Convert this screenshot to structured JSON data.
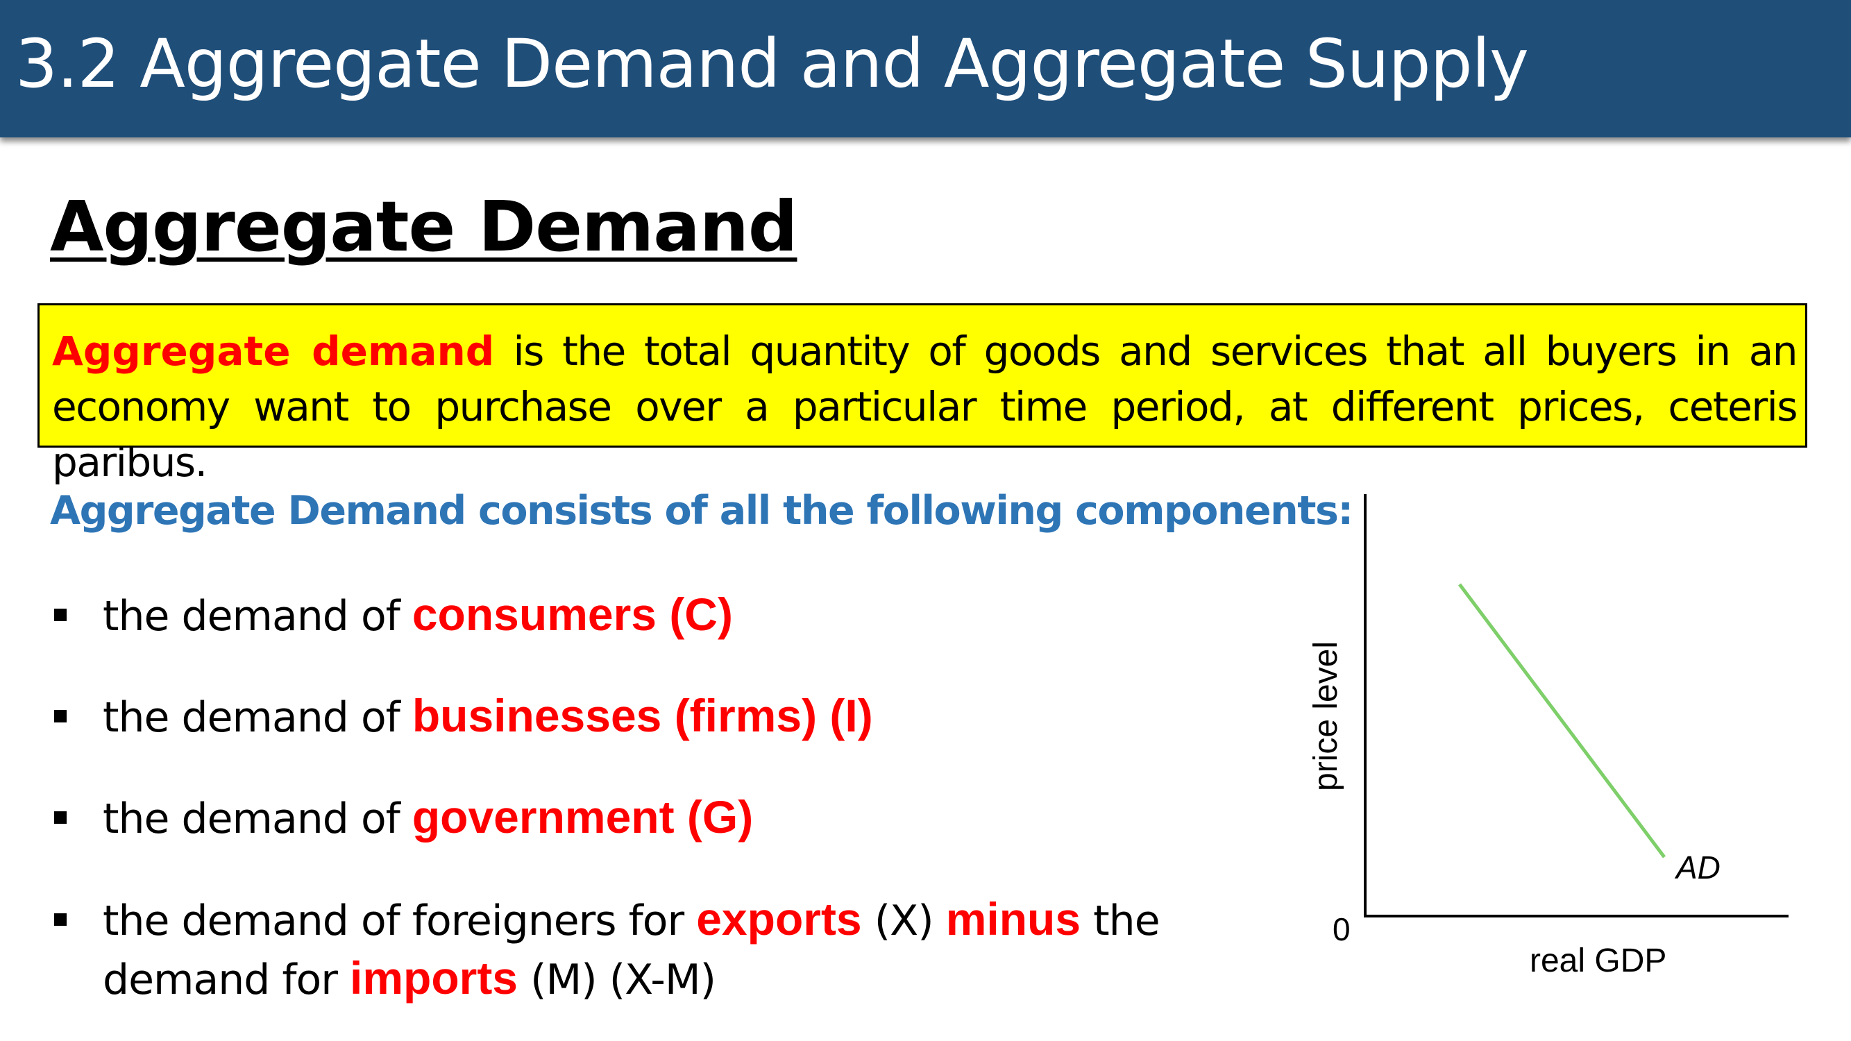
{
  "header": {
    "title": "3.2 Aggregate Demand and Aggregate Supply"
  },
  "section": {
    "heading": "Aggregate Demand"
  },
  "definition": {
    "term": "Aggregate demand",
    "text": " is the total quantity of goods and services that all buyers in an economy want to purchase over a particular time period, at different prices, ceteris paribus."
  },
  "components": {
    "heading": "Aggregate Demand consists of all the following components:",
    "bullets": [
      {
        "prefix": "the demand of ",
        "highlight": "consumers (C)"
      },
      {
        "prefix": "the demand of ",
        "highlight": "businesses (firms) (I)"
      },
      {
        "prefix": "the demand of ",
        "highlight": "government (G)"
      },
      {
        "prefix": "the demand of foreigners for ",
        "highlight": "exports",
        "middle": " (X) ",
        "highlight2": "minus",
        "middle2": " the demand for ",
        "highlight3": "imports",
        "suffix": " (M) (X-M)"
      }
    ]
  },
  "graph": {
    "y_axis_label": "price level",
    "x_axis_label": "real GDP",
    "origin_label": "0",
    "curve_label": "AD",
    "curve_color": "#7ecf6a"
  }
}
